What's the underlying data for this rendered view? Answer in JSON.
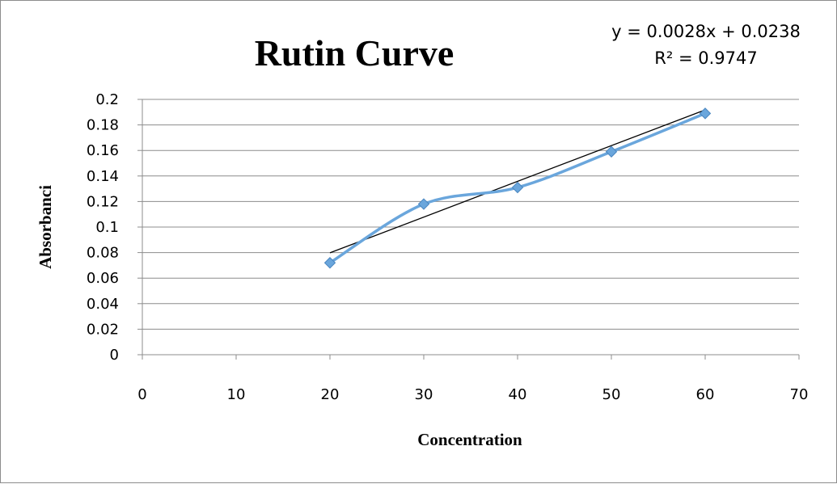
{
  "chart_data": {
    "type": "scatter",
    "title": "Rutin Curve",
    "xlabel": "Concentration",
    "ylabel": "Absorbanci",
    "xlim": [
      0,
      70
    ],
    "ylim": [
      0,
      0.2
    ],
    "x_ticks": [
      "0",
      "10",
      "20",
      "30",
      "40",
      "50",
      "60",
      "70"
    ],
    "y_ticks": [
      "0",
      "0.02",
      "0.04",
      "0.06",
      "0.08",
      "0.1",
      "0.12",
      "0.14",
      "0.16",
      "0.18",
      "0.2"
    ],
    "grid": "horizontal",
    "series": [
      {
        "x": [
          20,
          30,
          40,
          50,
          60
        ],
        "y": [
          0.072,
          0.118,
          0.131,
          0.159,
          0.189
        ],
        "color": "#6aa6dc",
        "marker": "diamond",
        "line": "smoothed"
      }
    ],
    "trendline": {
      "type": "linear",
      "slope": 0.0028,
      "intercept": 0.0238,
      "x_range": [
        20,
        60
      ],
      "color": "#000000",
      "equation": "y = 0.0028x + 0.0238",
      "r_squared": "R² = 0.9747"
    }
  }
}
